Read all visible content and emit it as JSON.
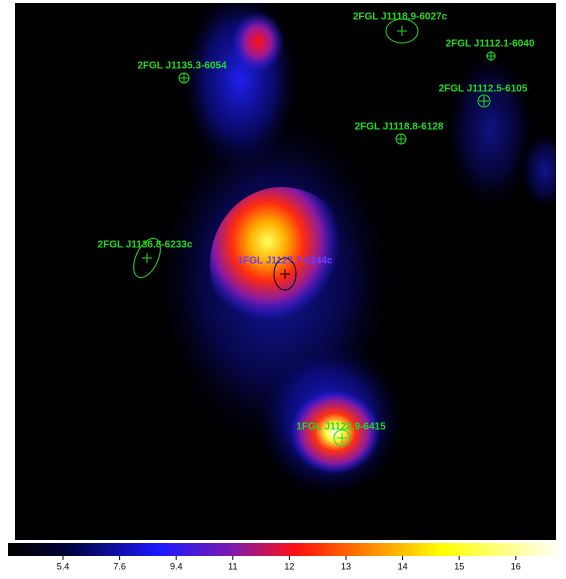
{
  "chart_data": {
    "type": "heatmap",
    "sources": [
      "2FGL J1118.9-6027c",
      "2FGL J1112.1-6040",
      "2FGL J1135.3-6054",
      "2FGL J1112.5-6105",
      "2FGL J1118.8-6128",
      "2FGL J1136.8-6233c",
      "1FGL J1127.7-6244c",
      "1FGL J1122.9-6415"
    ],
    "colorbar_ticks": [
      5.4,
      7.6,
      9.4,
      11,
      12,
      13,
      14,
      15,
      16
    ]
  }
}
